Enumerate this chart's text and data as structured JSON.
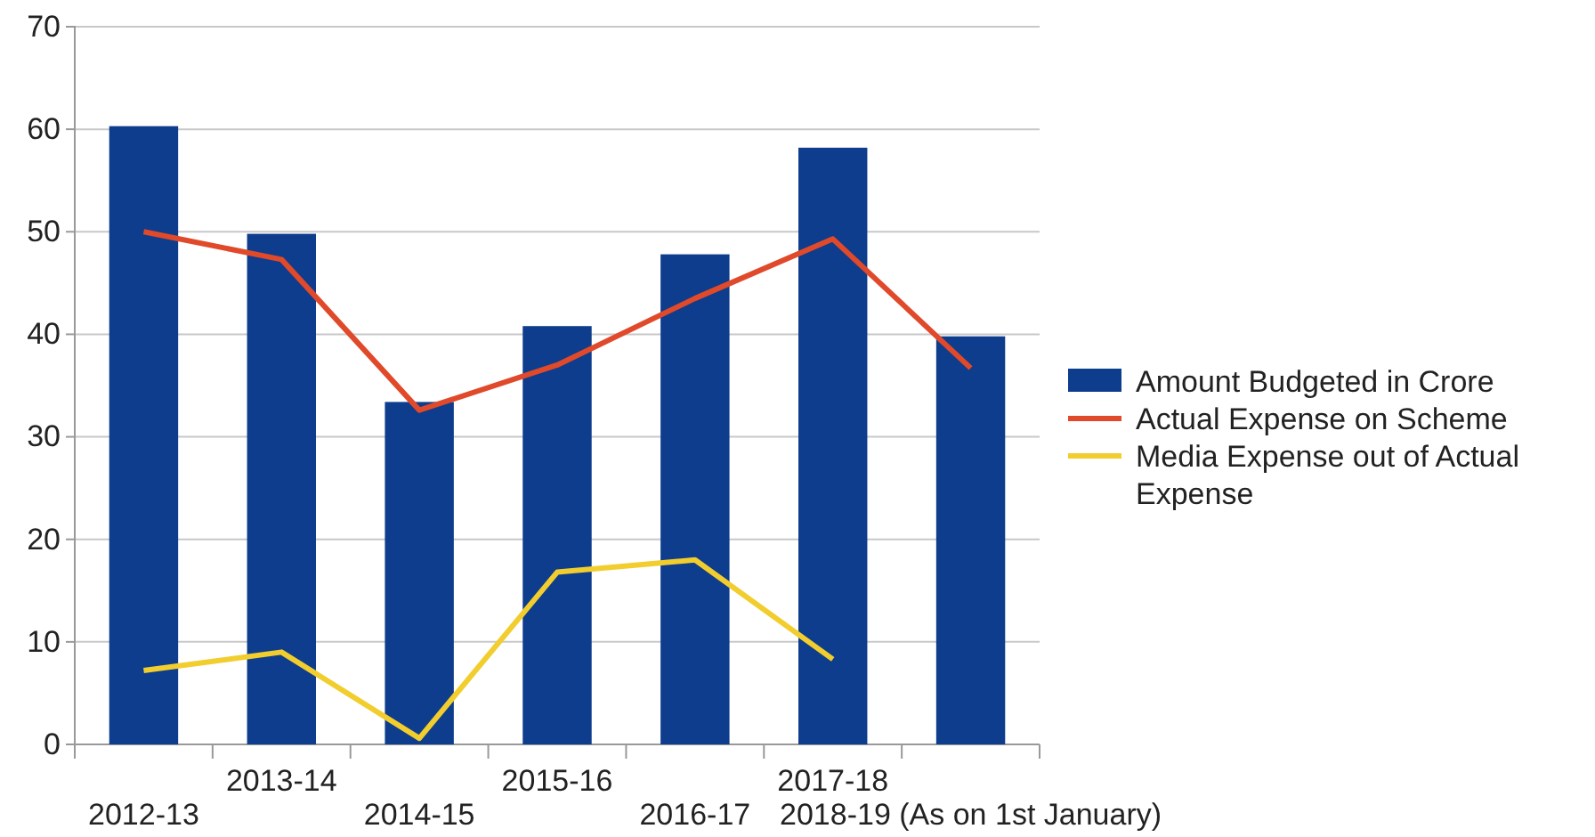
{
  "chart_data": {
    "type": "bar",
    "categories": [
      "2012-13",
      "2013-14",
      "2014-15",
      "2015-16",
      "2016-17",
      "2017-18",
      "2018-19 (As on 1st January)"
    ],
    "series": [
      {
        "name": "Amount Budgeted in Crore",
        "color": "#0d3d8c",
        "values": [
          60.3,
          49.8,
          33.4,
          40.8,
          47.8,
          58.2,
          39.8
        ]
      },
      {
        "name": "Actual Expense on Scheme",
        "type": "line",
        "color": "#e0492a",
        "values": [
          50,
          47.3,
          32.6,
          37,
          43.5,
          49.3,
          36.7
        ]
      },
      {
        "name": "Media Expense out of Actual Expense",
        "type": "line",
        "color": "#f2cd2e",
        "values": [
          7.2,
          9,
          0.6,
          16.8,
          18,
          8.3,
          null
        ]
      }
    ],
    "ylim": [
      0,
      70
    ],
    "yticks": [
      0,
      10,
      20,
      30,
      40,
      50,
      60,
      70
    ],
    "grid": "y",
    "legend": "right",
    "marker": "none",
    "line_style": "solid"
  }
}
